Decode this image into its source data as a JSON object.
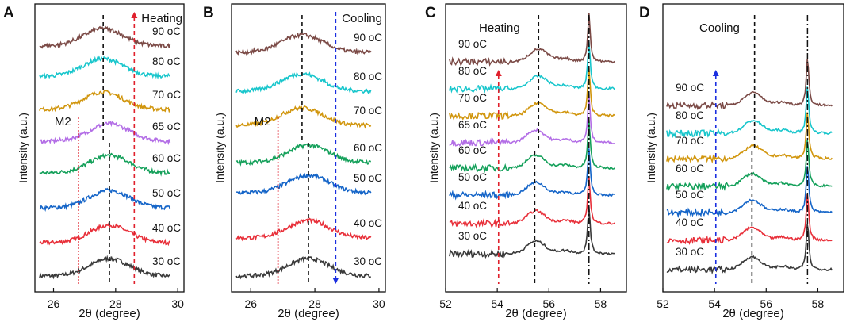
{
  "colors": {
    "30 oC": "#3a3a3a",
    "40 oC": "#e8303a",
    "50 oC": "#1565c8",
    "60 oC": "#14a05a",
    "65 oC": "#b36ee6",
    "70 oC": "#d1960e",
    "80 oC": "#19c6cc",
    "90 oC": "#7b4a46"
  },
  "chart_data": [
    {
      "panel": "A",
      "type": "line",
      "mode_label": "Heating",
      "xlabel": "2θ (degree)",
      "ylabel": "Intensity (a.u.)",
      "xlim": [
        25.4,
        30.2
      ],
      "xticks": [
        "26",
        "28",
        "30"
      ],
      "series": [
        {
          "name": "30 oC",
          "label": "30 oC",
          "peak": 27.8
        },
        {
          "name": "40 oC",
          "label": "40 oC",
          "peak": 27.8
        },
        {
          "name": "50 oC",
          "label": "50 oC",
          "peak": 27.8
        },
        {
          "name": "60 oC",
          "label": "60 oC",
          "peak": 27.8
        },
        {
          "name": "65 oC",
          "label": "65 oC",
          "peak": 27.8
        },
        {
          "name": "70 oC",
          "label": "70 oC",
          "peak": 27.6
        },
        {
          "name": "80 oC",
          "label": "80 oC",
          "peak": 27.6
        },
        {
          "name": "90 oC",
          "label": "90 oC",
          "peak": 27.6
        }
      ],
      "annotations": {
        "m2_label": "M2",
        "m2_line_x": 26.8,
        "arrow_x": 28.6,
        "arrow_direction": "up",
        "peak_lines": [
          27.8,
          27.6
        ]
      }
    },
    {
      "panel": "B",
      "type": "line",
      "mode_label": "Cooling",
      "xlabel": "2θ (degree)",
      "ylabel": "Intensity (a.u.)",
      "xlim": [
        25.4,
        30.2
      ],
      "xticks": [
        "26",
        "28",
        "30"
      ],
      "series": [
        {
          "name": "30 oC",
          "label": "30 oC",
          "peak": 27.8
        },
        {
          "name": "40 oC",
          "label": "40 oC",
          "peak": 27.8
        },
        {
          "name": "50 oC",
          "label": "50 oC",
          "peak": 27.8
        },
        {
          "name": "60 oC",
          "label": "60 oC",
          "peak": 27.8
        },
        {
          "name": "70 oC",
          "label": "70 oC",
          "peak": 27.6
        },
        {
          "name": "80 oC",
          "label": "80 oC",
          "peak": 27.6
        },
        {
          "name": "90 oC",
          "label": "90 oC",
          "peak": 27.6
        }
      ],
      "annotations": {
        "m2_label": "M2",
        "m2_line_x": 26.85,
        "arrow_x": 28.65,
        "arrow_direction": "down",
        "peak_lines": [
          27.8,
          27.6
        ]
      }
    },
    {
      "panel": "C",
      "type": "line",
      "mode_label": "Heating",
      "xlabel": "2θ (degree)",
      "ylabel": "Intensity (a.u.)",
      "xlim": [
        52,
        59
      ],
      "xticks": [
        "52",
        "54",
        "56",
        "58"
      ],
      "series": [
        {
          "name": "30 oC",
          "label": "30 oC",
          "peak": 55.5
        },
        {
          "name": "40 oC",
          "label": "40 oC",
          "peak": 55.5
        },
        {
          "name": "50 oC",
          "label": "50 oC",
          "peak": 55.5
        },
        {
          "name": "60 oC",
          "label": "60 oC",
          "peak": 55.5
        },
        {
          "name": "65 oC",
          "label": "65 oC",
          "peak": 55.5
        },
        {
          "name": "70 oC",
          "label": "70 oC",
          "peak": 55.6
        },
        {
          "name": "80 oC",
          "label": "80 oC",
          "peak": 55.6
        },
        {
          "name": "90 oC",
          "label": "90 oC",
          "peak": 55.6
        }
      ],
      "annotations": {
        "arrow_x": 54.05,
        "arrow_direction": "up",
        "peak_lines": [
          55.45,
          55.6
        ],
        "sharp_peak": 57.55
      }
    },
    {
      "panel": "D",
      "type": "line",
      "mode_label": "Cooling",
      "xlabel": "2θ (degree)",
      "ylabel": "Intensity (a.u.)",
      "xlim": [
        52,
        59
      ],
      "xticks": [
        "52",
        "54",
        "56",
        "58"
      ],
      "series": [
        {
          "name": "30 oC",
          "label": "30 oC",
          "peak": 55.45
        },
        {
          "name": "40 oC",
          "label": "40 oC",
          "peak": 55.45
        },
        {
          "name": "50 oC",
          "label": "50 oC",
          "peak": 55.45
        },
        {
          "name": "60 oC",
          "label": "60 oC",
          "peak": 55.45
        },
        {
          "name": "70 oC",
          "label": "70 oC",
          "peak": 55.5
        },
        {
          "name": "80 oC",
          "label": "80 oC",
          "peak": 55.5
        },
        {
          "name": "90 oC",
          "label": "90 oC",
          "peak": 55.5
        }
      ],
      "annotations": {
        "arrow_x": 54.05,
        "arrow_direction": "up",
        "peak_lines": [
          55.45,
          55.55
        ],
        "sharp_peak": 57.6
      }
    }
  ]
}
